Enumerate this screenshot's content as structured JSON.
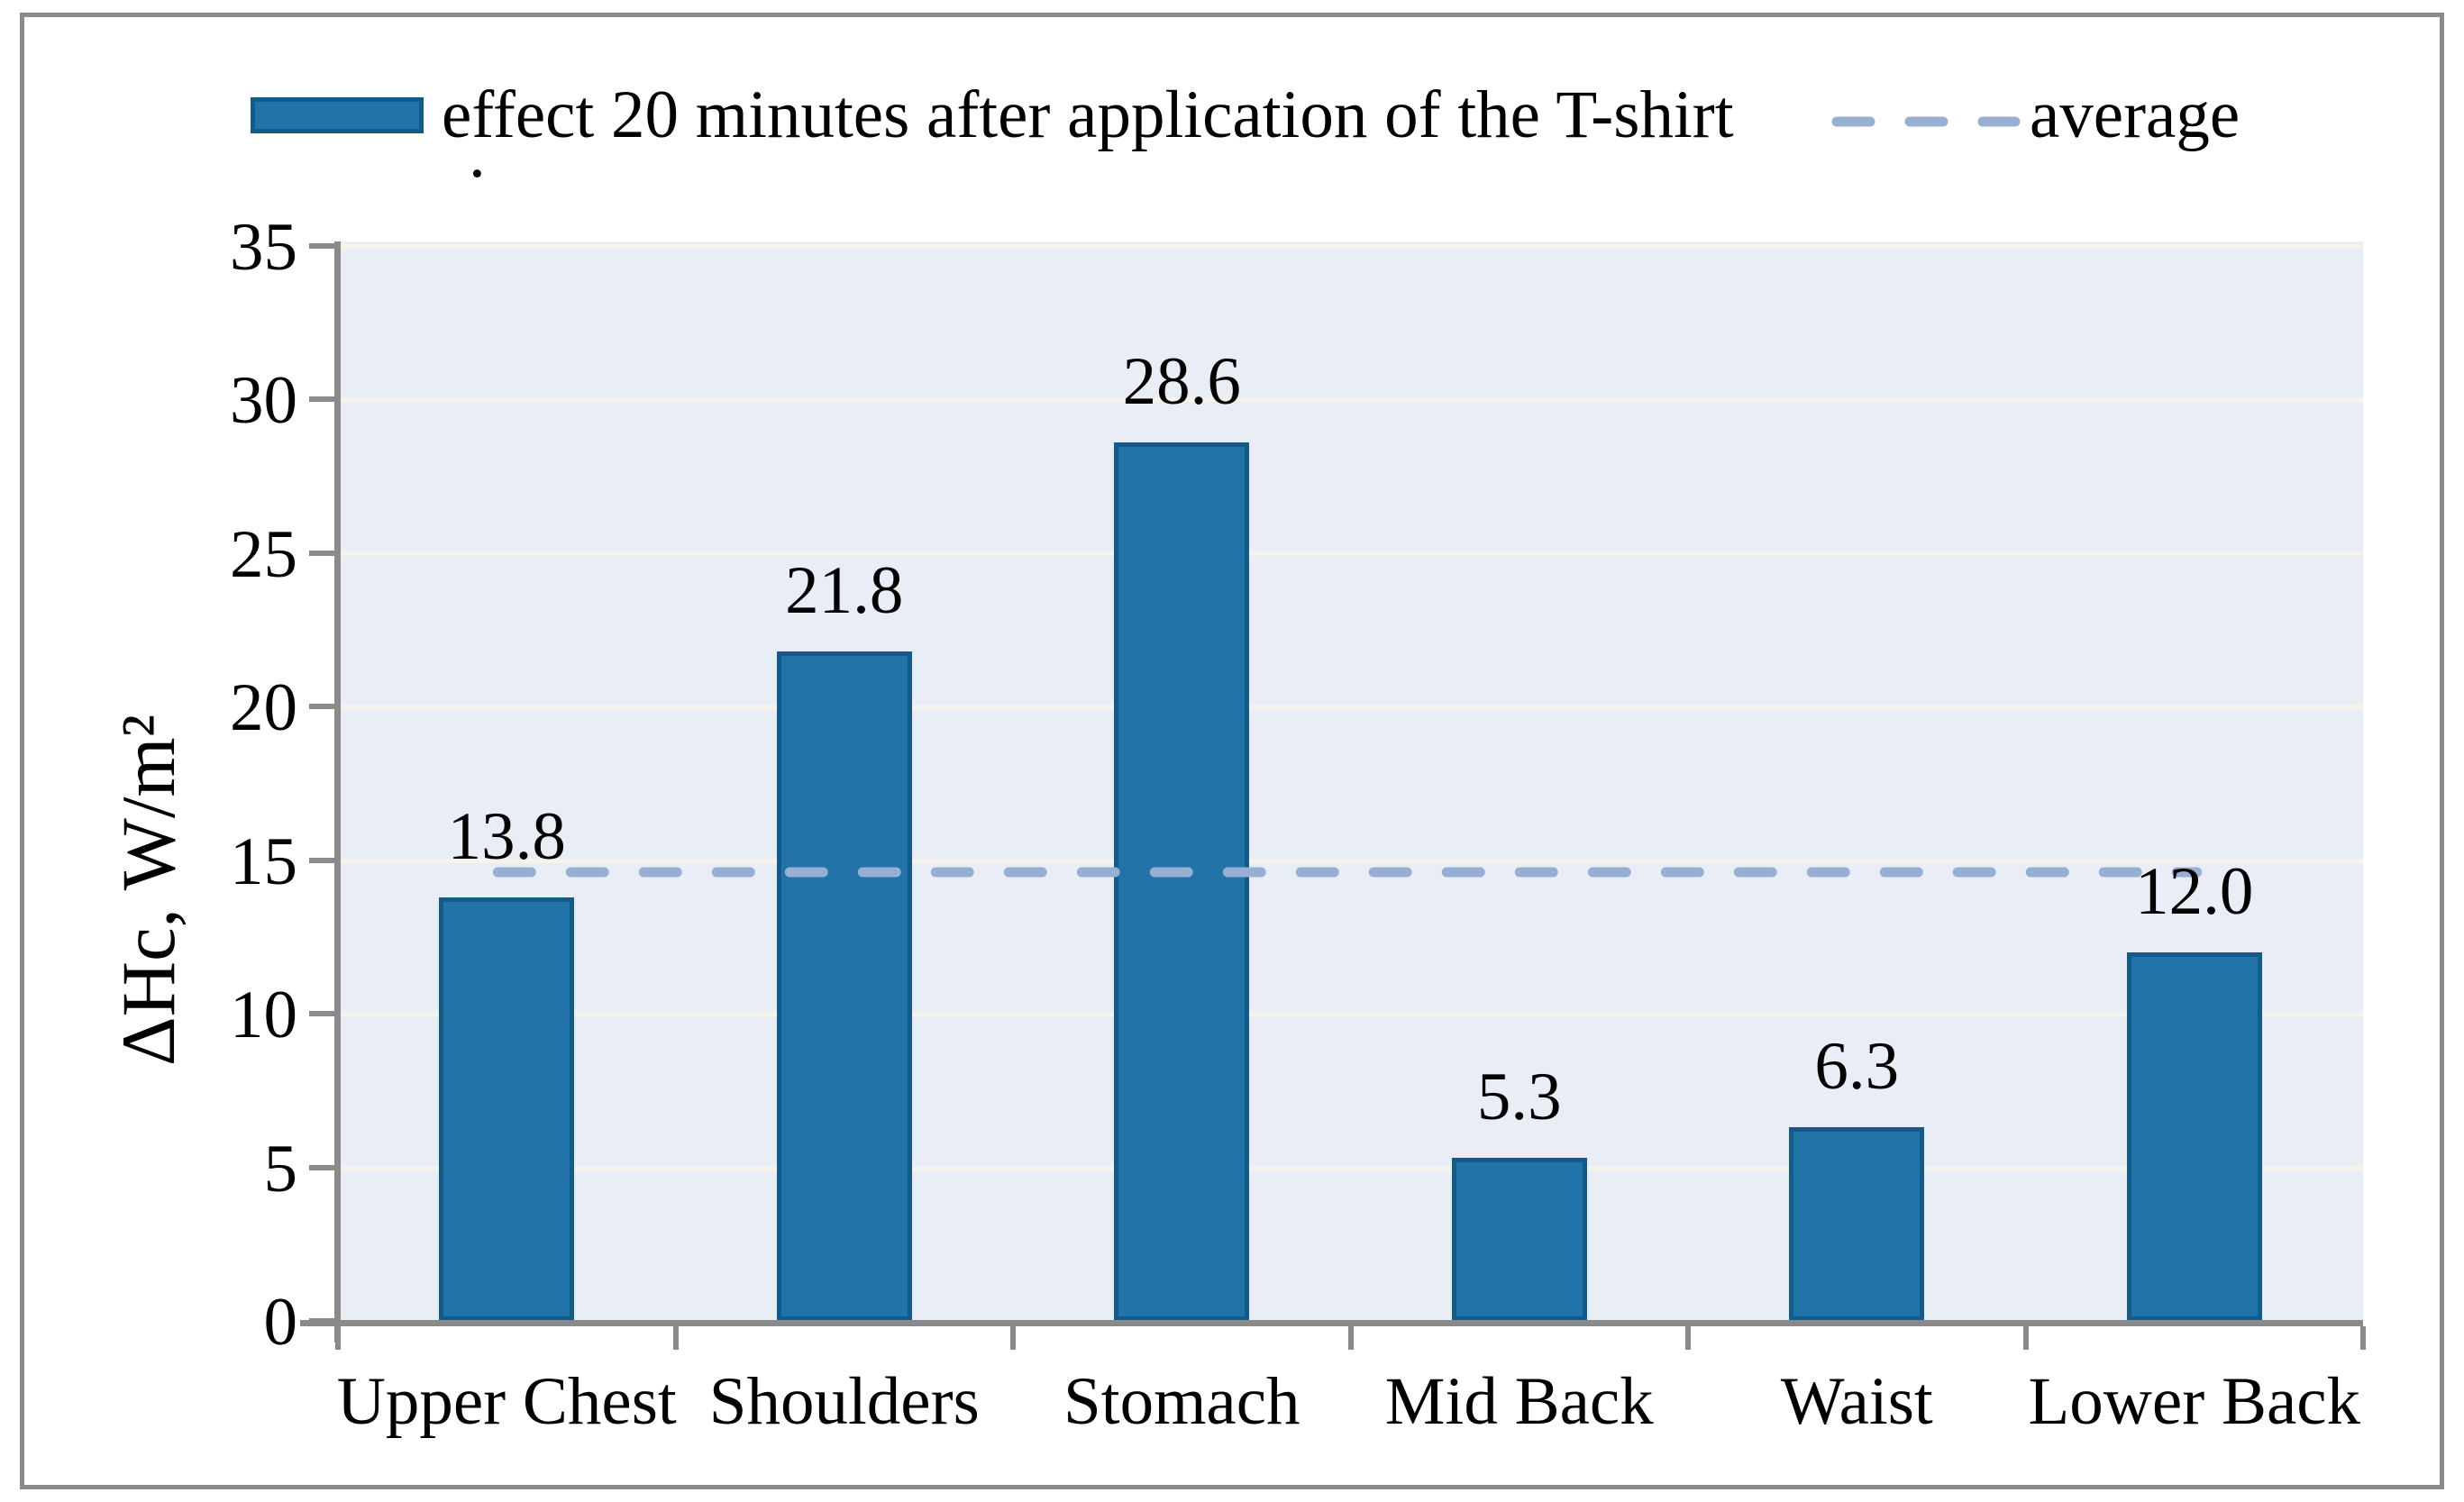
{
  "legend": {
    "position": "top"
  },
  "decorations": {
    "stray_period": "."
  },
  "chart_data": {
    "type": "bar",
    "title": "",
    "categories": [
      "Upper Chest",
      "Shoulders",
      "Stomach",
      "Mid Back",
      "Waist",
      "Lower Back"
    ],
    "series": [
      {
        "name": "effect 20 minutes after application of the T-shirt",
        "type": "bar",
        "values": [
          13.8,
          21.8,
          28.6,
          5.3,
          6.3,
          12.0
        ],
        "data_labels": [
          "13.8",
          "21.8",
          "28.6",
          "5.3",
          "6.3",
          "12.0"
        ]
      },
      {
        "name": "average",
        "type": "line",
        "style": "dashed",
        "value": 14.6
      }
    ],
    "xlabel": "",
    "ylabel": "ΔHc, W/m²",
    "ylim": [
      0,
      35
    ],
    "yticks": [
      0,
      5,
      10,
      15,
      20,
      25,
      30,
      35
    ],
    "grid": "horizontal",
    "legend_position": "top",
    "colors": {
      "bar_fill": "#2173A8",
      "bar_border": "#135B89",
      "average_line": "#97AFD2",
      "plot_bg": "#E9EDF5",
      "gridline": "#F6F3EB",
      "axis": "#8A8A8A",
      "figure_border": "#8A8A8A",
      "text": "#000000"
    }
  }
}
